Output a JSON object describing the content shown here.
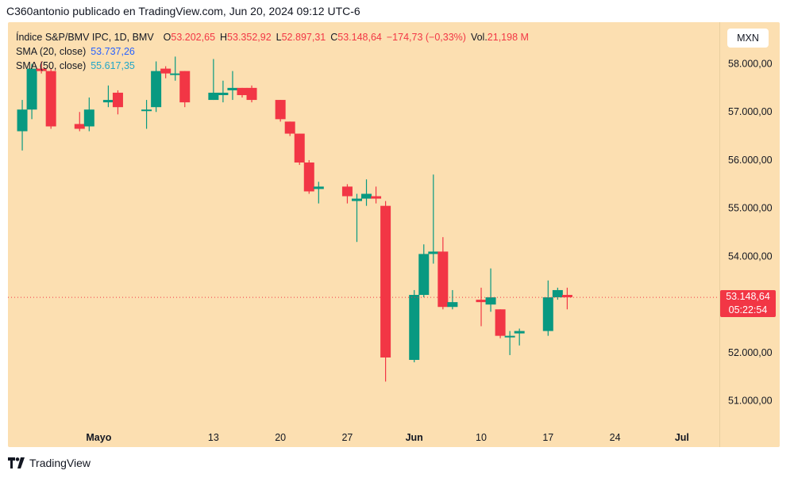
{
  "header": {
    "published_by": "C360antonio publicado en TradingView.com, Jun 20, 2024 09:12 UTC-6"
  },
  "legend": {
    "symbol": "Índice S&P/BMV IPC, 1D, BMV",
    "open_label": "O",
    "open_value": "53.202,65",
    "high_label": "H",
    "high_value": "53.352,92",
    "low_label": "L",
    "low_value": "52.897,31",
    "close_label": "C",
    "close_value": "53.148,64",
    "change": "−174,73 (−0,33%)",
    "vol_label": "Vol.",
    "vol_value": "21,198 M",
    "sma20_label": "SMA (20, close)",
    "sma20_value": "53.737,26",
    "sma50_label": "SMA (50, close)",
    "sma50_value": "55.617,35"
  },
  "currency": "MXN",
  "last_price": {
    "price": "53.148,64",
    "countdown": "05:22:54"
  },
  "footer": {
    "brand": "TradingView"
  },
  "colors": {
    "up": "#089981",
    "down": "#f23645",
    "background": "#fcdfb1",
    "sma20": "#2962ff",
    "sma50": "#22a6c8"
  },
  "chart_data": {
    "type": "candlestick",
    "y_ticks": [
      "58.000,00",
      "57.000,00",
      "56.000,00",
      "55.000,00",
      "54.000,00",
      "53.000,00",
      "52.000,00",
      "51.000,00"
    ],
    "y_tick_values": [
      58000,
      57000,
      56000,
      55000,
      54000,
      53000,
      52000,
      51000
    ],
    "ylim": [
      50500,
      58700
    ],
    "x_ticks": [
      "Mayo",
      "13",
      "20",
      "27",
      "Jun",
      "10",
      "17",
      "24",
      "Jul"
    ],
    "x_tick_dates": [
      "2024-05-01",
      "2024-05-13",
      "2024-05-20",
      "2024-05-27",
      "2024-06-03",
      "2024-06-10",
      "2024-06-17",
      "2024-06-24",
      "2024-07-01"
    ],
    "x_tick_bold": [
      true,
      false,
      false,
      false,
      true,
      false,
      false,
      false,
      true
    ],
    "last_close": 53148.64,
    "candles": [
      {
        "date": "2024-04-23",
        "o": 56600,
        "h": 57250,
        "l": 56200,
        "c": 57050
      },
      {
        "date": "2024-04-24",
        "o": 57050,
        "h": 58000,
        "l": 56850,
        "c": 57900
      },
      {
        "date": "2024-04-25",
        "o": 57900,
        "h": 58050,
        "l": 57800,
        "c": 57850
      },
      {
        "date": "2024-04-26",
        "o": 57850,
        "h": 57900,
        "l": 56650,
        "c": 56700
      },
      {
        "date": "2024-04-29",
        "o": 56750,
        "h": 57000,
        "l": 56600,
        "c": 56650
      },
      {
        "date": "2024-04-30",
        "o": 56700,
        "h": 57300,
        "l": 56600,
        "c": 57050
      },
      {
        "date": "2024-05-02",
        "o": 57200,
        "h": 57550,
        "l": 57100,
        "c": 57250
      },
      {
        "date": "2024-05-03",
        "o": 57400,
        "h": 57450,
        "l": 56950,
        "c": 57100
      },
      {
        "date": "2024-05-06",
        "o": 57050,
        "h": 57250,
        "l": 56650,
        "c": 57050
      },
      {
        "date": "2024-05-07",
        "o": 57100,
        "h": 58050,
        "l": 57000,
        "c": 57850
      },
      {
        "date": "2024-05-08",
        "o": 57900,
        "h": 57950,
        "l": 57700,
        "c": 57800
      },
      {
        "date": "2024-05-09",
        "o": 57800,
        "h": 58150,
        "l": 57650,
        "c": 57800
      },
      {
        "date": "2024-05-10",
        "o": 57850,
        "h": 57850,
        "l": 57100,
        "c": 57200
      },
      {
        "date": "2024-05-13",
        "o": 57250,
        "h": 58100,
        "l": 57250,
        "c": 57400
      },
      {
        "date": "2024-05-14",
        "o": 57350,
        "h": 57650,
        "l": 57200,
        "c": 57400
      },
      {
        "date": "2024-05-15",
        "o": 57450,
        "h": 57850,
        "l": 57250,
        "c": 57500
      },
      {
        "date": "2024-05-16",
        "o": 57500,
        "h": 57500,
        "l": 57300,
        "c": 57350
      },
      {
        "date": "2024-05-17",
        "o": 57500,
        "h": 57550,
        "l": 57200,
        "c": 57250
      },
      {
        "date": "2024-05-20",
        "o": 57250,
        "h": 57250,
        "l": 56800,
        "c": 56850
      },
      {
        "date": "2024-05-21",
        "o": 56800,
        "h": 56800,
        "l": 56500,
        "c": 56550
      },
      {
        "date": "2024-05-22",
        "o": 56550,
        "h": 56550,
        "l": 55900,
        "c": 55950
      },
      {
        "date": "2024-05-23",
        "o": 55950,
        "h": 56000,
        "l": 55300,
        "c": 55350
      },
      {
        "date": "2024-05-24",
        "o": 55400,
        "h": 55550,
        "l": 55100,
        "c": 55450
      },
      {
        "date": "2024-05-27",
        "o": 55450,
        "h": 55500,
        "l": 55100,
        "c": 55250
      },
      {
        "date": "2024-05-28",
        "o": 55150,
        "h": 55300,
        "l": 54300,
        "c": 55200
      },
      {
        "date": "2024-05-29",
        "o": 55200,
        "h": 55600,
        "l": 55050,
        "c": 55300
      },
      {
        "date": "2024-05-30",
        "o": 55250,
        "h": 55450,
        "l": 55100,
        "c": 55200
      },
      {
        "date": "2024-05-31",
        "o": 55050,
        "h": 55150,
        "l": 51400,
        "c": 51900
      },
      {
        "date": "2024-06-03",
        "o": 51850,
        "h": 53300,
        "l": 51800,
        "c": 53200
      },
      {
        "date": "2024-06-04",
        "o": 53200,
        "h": 54250,
        "l": 53150,
        "c": 54050
      },
      {
        "date": "2024-06-05",
        "o": 54050,
        "h": 55700,
        "l": 53850,
        "c": 54100
      },
      {
        "date": "2024-06-06",
        "o": 54100,
        "h": 54400,
        "l": 52900,
        "c": 52950
      },
      {
        "date": "2024-06-07",
        "o": 52950,
        "h": 53300,
        "l": 52900,
        "c": 53050
      },
      {
        "date": "2024-06-10",
        "o": 53100,
        "h": 53350,
        "l": 52550,
        "c": 53050
      },
      {
        "date": "2024-06-11",
        "o": 53000,
        "h": 53750,
        "l": 52850,
        "c": 53150
      },
      {
        "date": "2024-06-12",
        "o": 52900,
        "h": 52900,
        "l": 52300,
        "c": 52350
      },
      {
        "date": "2024-06-13",
        "o": 52350,
        "h": 52450,
        "l": 51950,
        "c": 52350
      },
      {
        "date": "2024-06-14",
        "o": 52400,
        "h": 52500,
        "l": 52150,
        "c": 52450
      },
      {
        "date": "2024-06-17",
        "o": 52450,
        "h": 53500,
        "l": 52350,
        "c": 53150
      },
      {
        "date": "2024-06-18",
        "o": 53150,
        "h": 53350,
        "l": 53100,
        "c": 53300
      },
      {
        "date": "2024-06-19",
        "o": 53200,
        "h": 53350,
        "l": 52900,
        "c": 53150
      }
    ]
  }
}
